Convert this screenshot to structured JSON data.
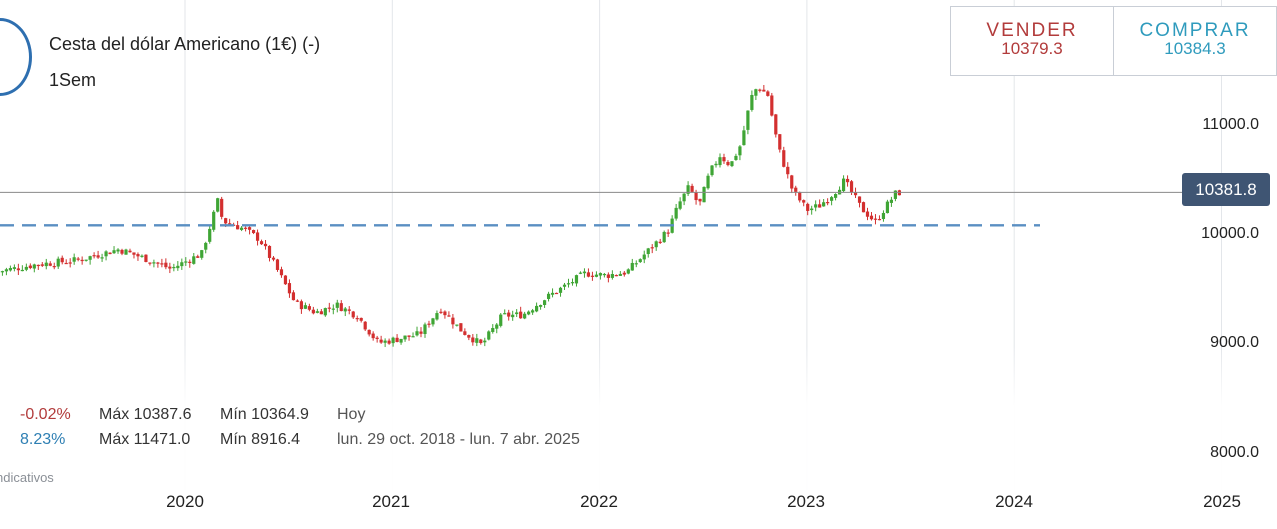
{
  "instrument": {
    "name": "Cesta del dólar Americano (1€) (-)",
    "period": "1Sem"
  },
  "quotes": {
    "sell": {
      "label": "VENDER",
      "value": "10379.3"
    },
    "buy": {
      "label": "COMPRAR",
      "value": "10384.3"
    }
  },
  "stats": {
    "today": {
      "change": "-0.02%",
      "max": "Máx 10387.6",
      "min": "Mín 10364.9",
      "when": "Hoy"
    },
    "range": {
      "change": "8.23%",
      "max": "Máx 11471.0",
      "min": "Mín 8916.4",
      "when": "lun. 29 oct. 2018 - lun. 7 abr. 2025"
    }
  },
  "footnote": "ndicativos",
  "last_price_label": "10381.8",
  "colors": {
    "up": "#3fa535",
    "down": "#d32f2f",
    "support_line": "#5a8fc2",
    "last_line": "#8a8a8a",
    "badge": "#3f5573"
  },
  "chart_data": {
    "type": "candlestick",
    "interval": "weekly",
    "ylim": [
      7900,
      11550
    ],
    "xlim": [
      2019.1,
      2025.25
    ],
    "y_ticks": [
      {
        "value": 11000,
        "label": "11000.0"
      },
      {
        "value": 10000,
        "label": "10000.0"
      },
      {
        "value": 9000,
        "label": "9000.0"
      },
      {
        "value": 8000,
        "label": "8000.0"
      }
    ],
    "x_ticks": [
      {
        "value": 2020,
        "label": "2020"
      },
      {
        "value": 2021,
        "label": "2021"
      },
      {
        "value": 2022,
        "label": "2022"
      },
      {
        "value": 2023,
        "label": "2023"
      },
      {
        "value": 2024,
        "label": "2024"
      },
      {
        "value": 2025,
        "label": "2025"
      }
    ],
    "last_price": 10381.8,
    "support_level": 10080,
    "series_end": 2023.45,
    "price_path": [
      [
        2019.1,
        9650
      ],
      [
        2019.3,
        9720
      ],
      [
        2019.5,
        9760
      ],
      [
        2019.7,
        9860
      ],
      [
        2019.85,
        9760
      ],
      [
        2019.95,
        9680
      ],
      [
        2020.1,
        9820
      ],
      [
        2020.18,
        10320
      ],
      [
        2020.2,
        10120
      ],
      [
        2020.3,
        10050
      ],
      [
        2020.38,
        9950
      ],
      [
        2020.45,
        9720
      ],
      [
        2020.55,
        9370
      ],
      [
        2020.65,
        9280
      ],
      [
        2020.75,
        9350
      ],
      [
        2020.85,
        9250
      ],
      [
        2020.95,
        9000
      ],
      [
        2021.05,
        9040
      ],
      [
        2021.15,
        9080
      ],
      [
        2021.25,
        9320
      ],
      [
        2021.35,
        9120
      ],
      [
        2021.45,
        8980
      ],
      [
        2021.55,
        9250
      ],
      [
        2021.65,
        9260
      ],
      [
        2021.75,
        9400
      ],
      [
        2021.85,
        9520
      ],
      [
        2021.95,
        9640
      ],
      [
        2022.05,
        9620
      ],
      [
        2022.15,
        9650
      ],
      [
        2022.25,
        9840
      ],
      [
        2022.35,
        10030
      ],
      [
        2022.4,
        10270
      ],
      [
        2022.45,
        10430
      ],
      [
        2022.5,
        10260
      ],
      [
        2022.55,
        10560
      ],
      [
        2022.6,
        10720
      ],
      [
        2022.65,
        10630
      ],
      [
        2022.7,
        10820
      ],
      [
        2022.75,
        11250
      ],
      [
        2022.78,
        11350
      ],
      [
        2022.83,
        11280
      ],
      [
        2022.88,
        10800
      ],
      [
        2022.95,
        10400
      ],
      [
        2023.02,
        10220
      ],
      [
        2023.08,
        10260
      ],
      [
        2023.15,
        10380
      ],
      [
        2023.2,
        10490
      ],
      [
        2023.28,
        10240
      ],
      [
        2023.35,
        10110
      ],
      [
        2023.4,
        10250
      ],
      [
        2023.45,
        10380
      ]
    ]
  }
}
